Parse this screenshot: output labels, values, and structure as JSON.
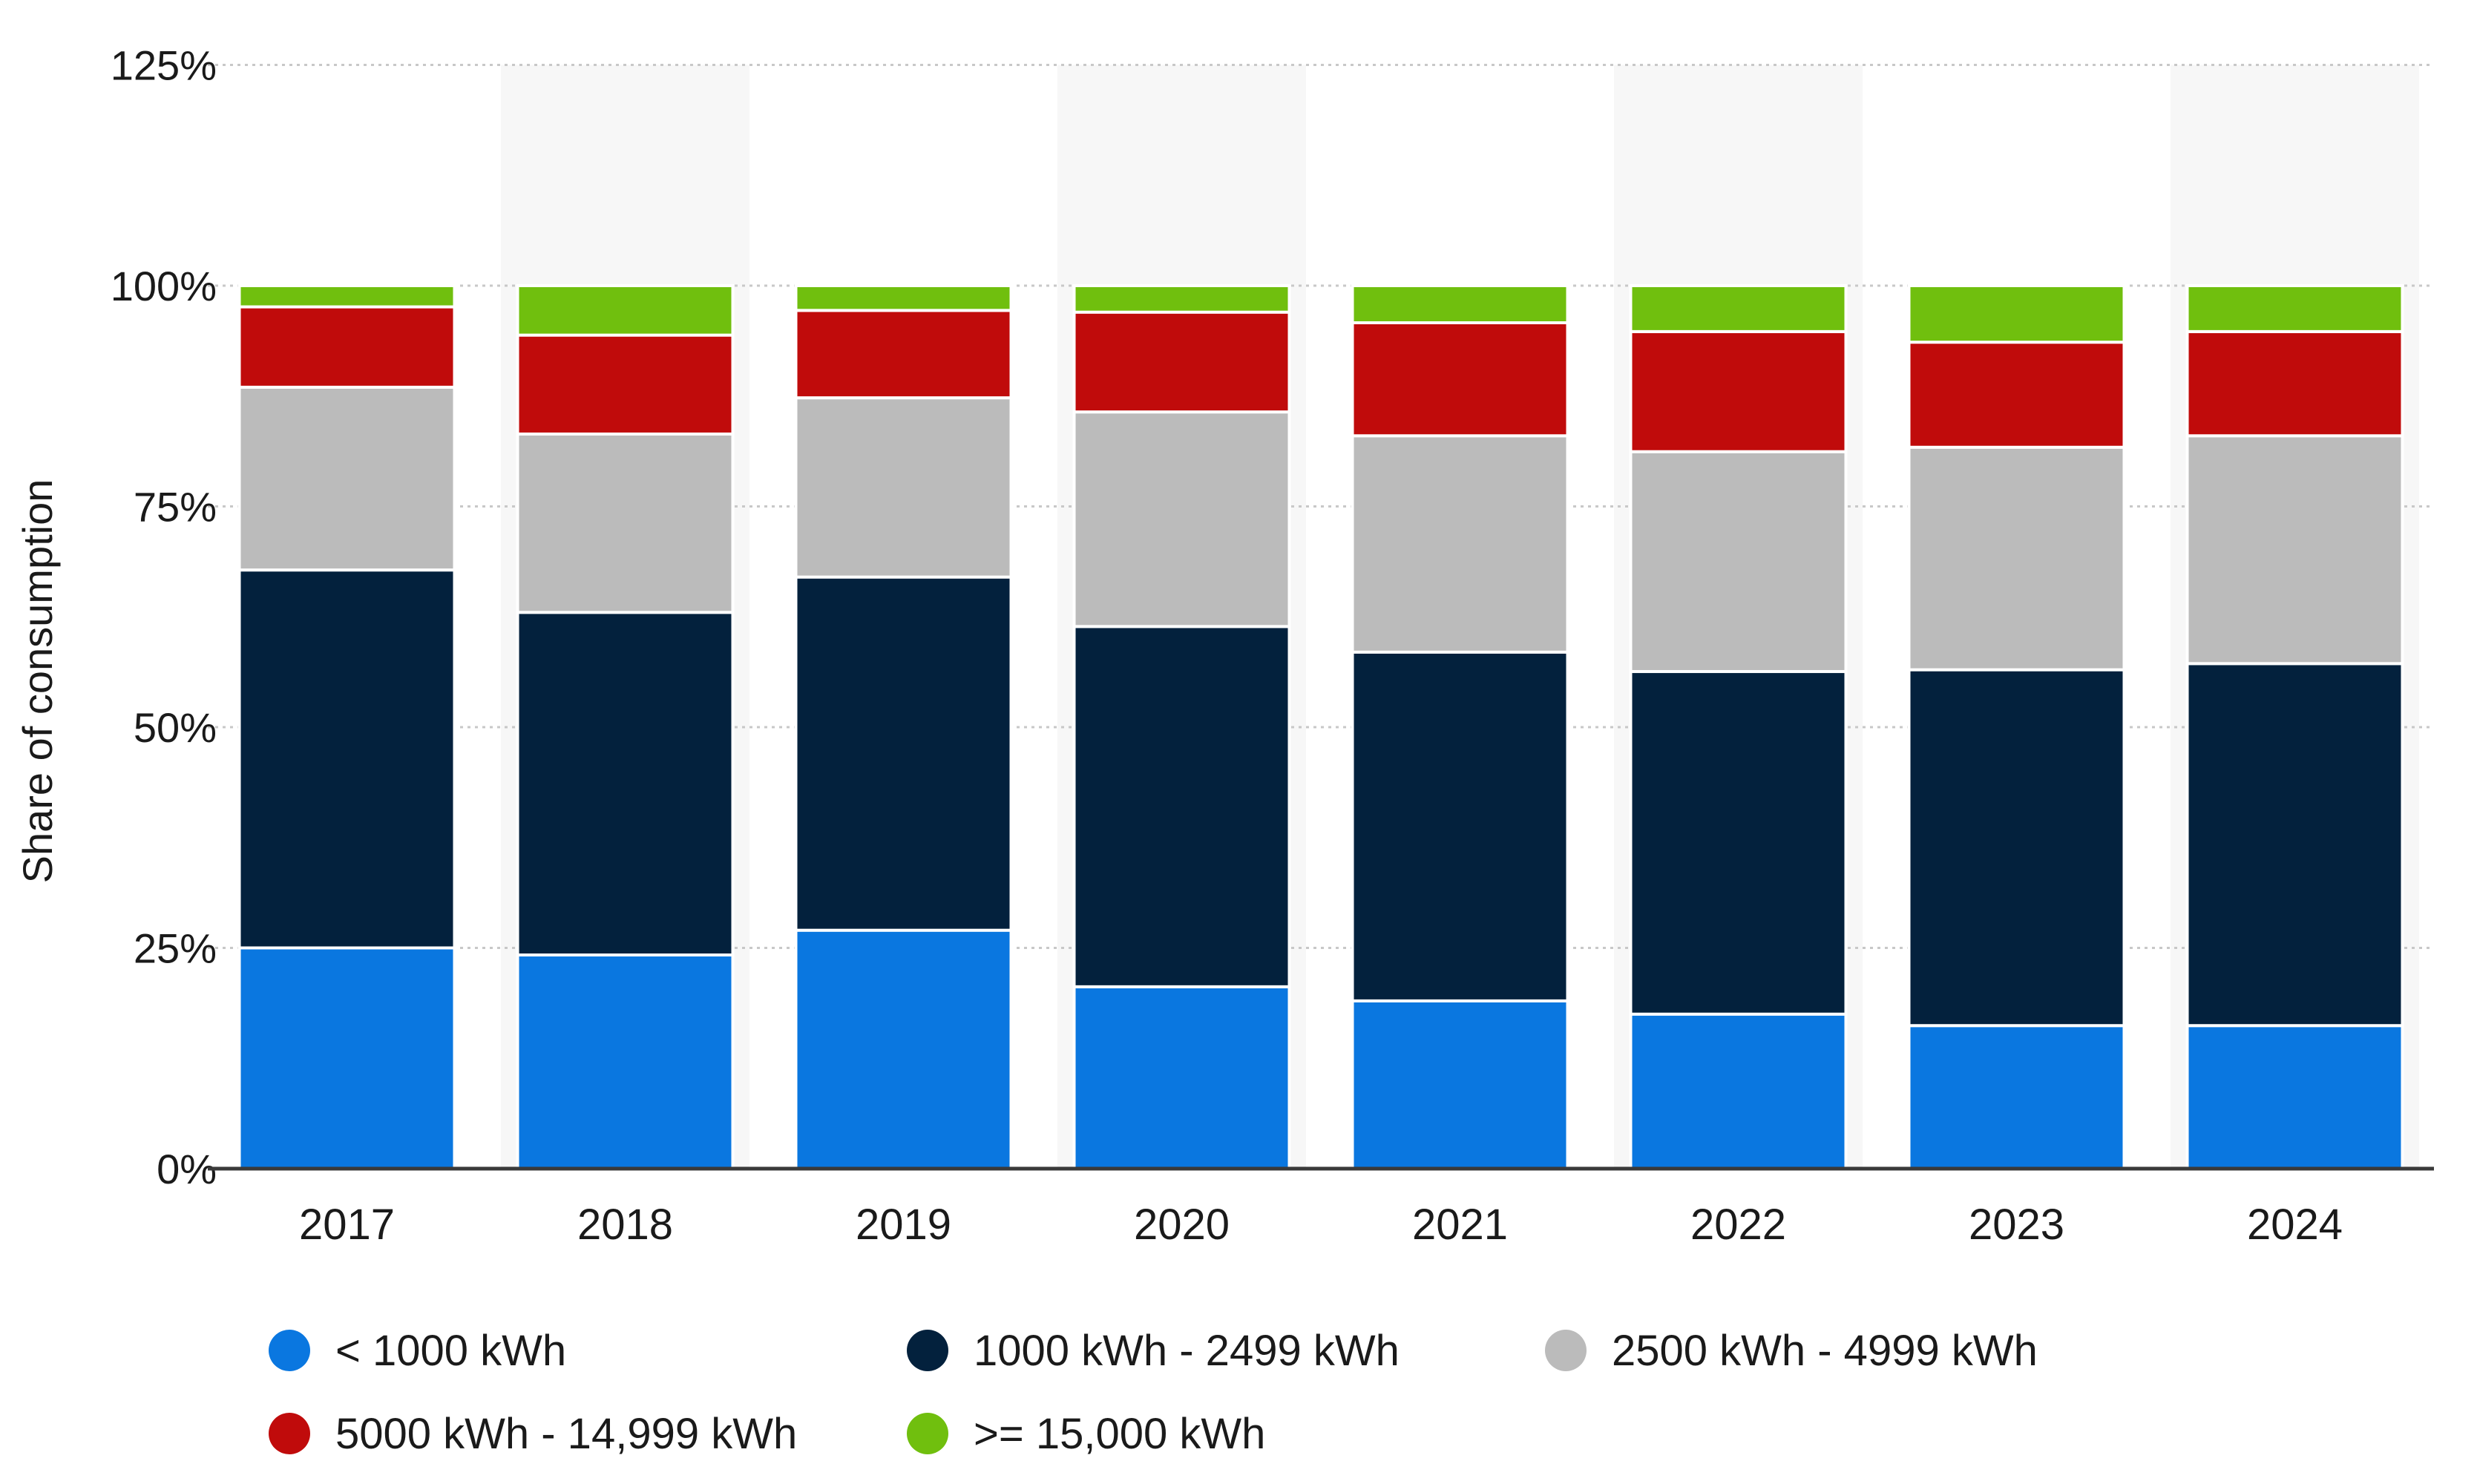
{
  "chart_data": {
    "type": "bar",
    "stacked": true,
    "title": "",
    "xlabel": "",
    "ylabel": "Share of consumption",
    "ylim": [
      0,
      125
    ],
    "y_ticks": [
      "0%",
      "25%",
      "50%",
      "75%",
      "100%",
      "125%"
    ],
    "y_tick_values": [
      0,
      25,
      50,
      75,
      100,
      125
    ],
    "grid": true,
    "legend_position": "bottom",
    "categories": [
      "2017",
      "2018",
      "2019",
      "2020",
      "2021",
      "2022",
      "2023",
      "2024"
    ],
    "series": [
      {
        "name": "< 1000 kWh",
        "color": "#0a77e0",
        "values": [
          25,
          24.2,
          27,
          20.6,
          19,
          17.5,
          16.2,
          16.2
        ]
      },
      {
        "name": "1000 kWh - 2499 kWh",
        "color": "#03213d",
        "values": [
          42.8,
          38.8,
          40,
          40.8,
          39.5,
          38.8,
          40.3,
          41
        ]
      },
      {
        "name": "2500 kWh - 4999 kWh",
        "color": "#bbbbbb",
        "values": [
          20.7,
          20.2,
          20.3,
          24.3,
          24.5,
          24.9,
          25.2,
          25.8
        ]
      },
      {
        "name": "5000 kWh - 14,999 kWh",
        "color": "#c00b0b",
        "values": [
          9.1,
          11.2,
          9.9,
          11.3,
          12.8,
          13.6,
          11.9,
          11.8
        ]
      },
      {
        "name": ">= 15,000 kWh",
        "color": "#70bf0e",
        "values": [
          2.4,
          5.6,
          2.8,
          3,
          4.2,
          5.2,
          6.4,
          5.2
        ]
      }
    ]
  }
}
